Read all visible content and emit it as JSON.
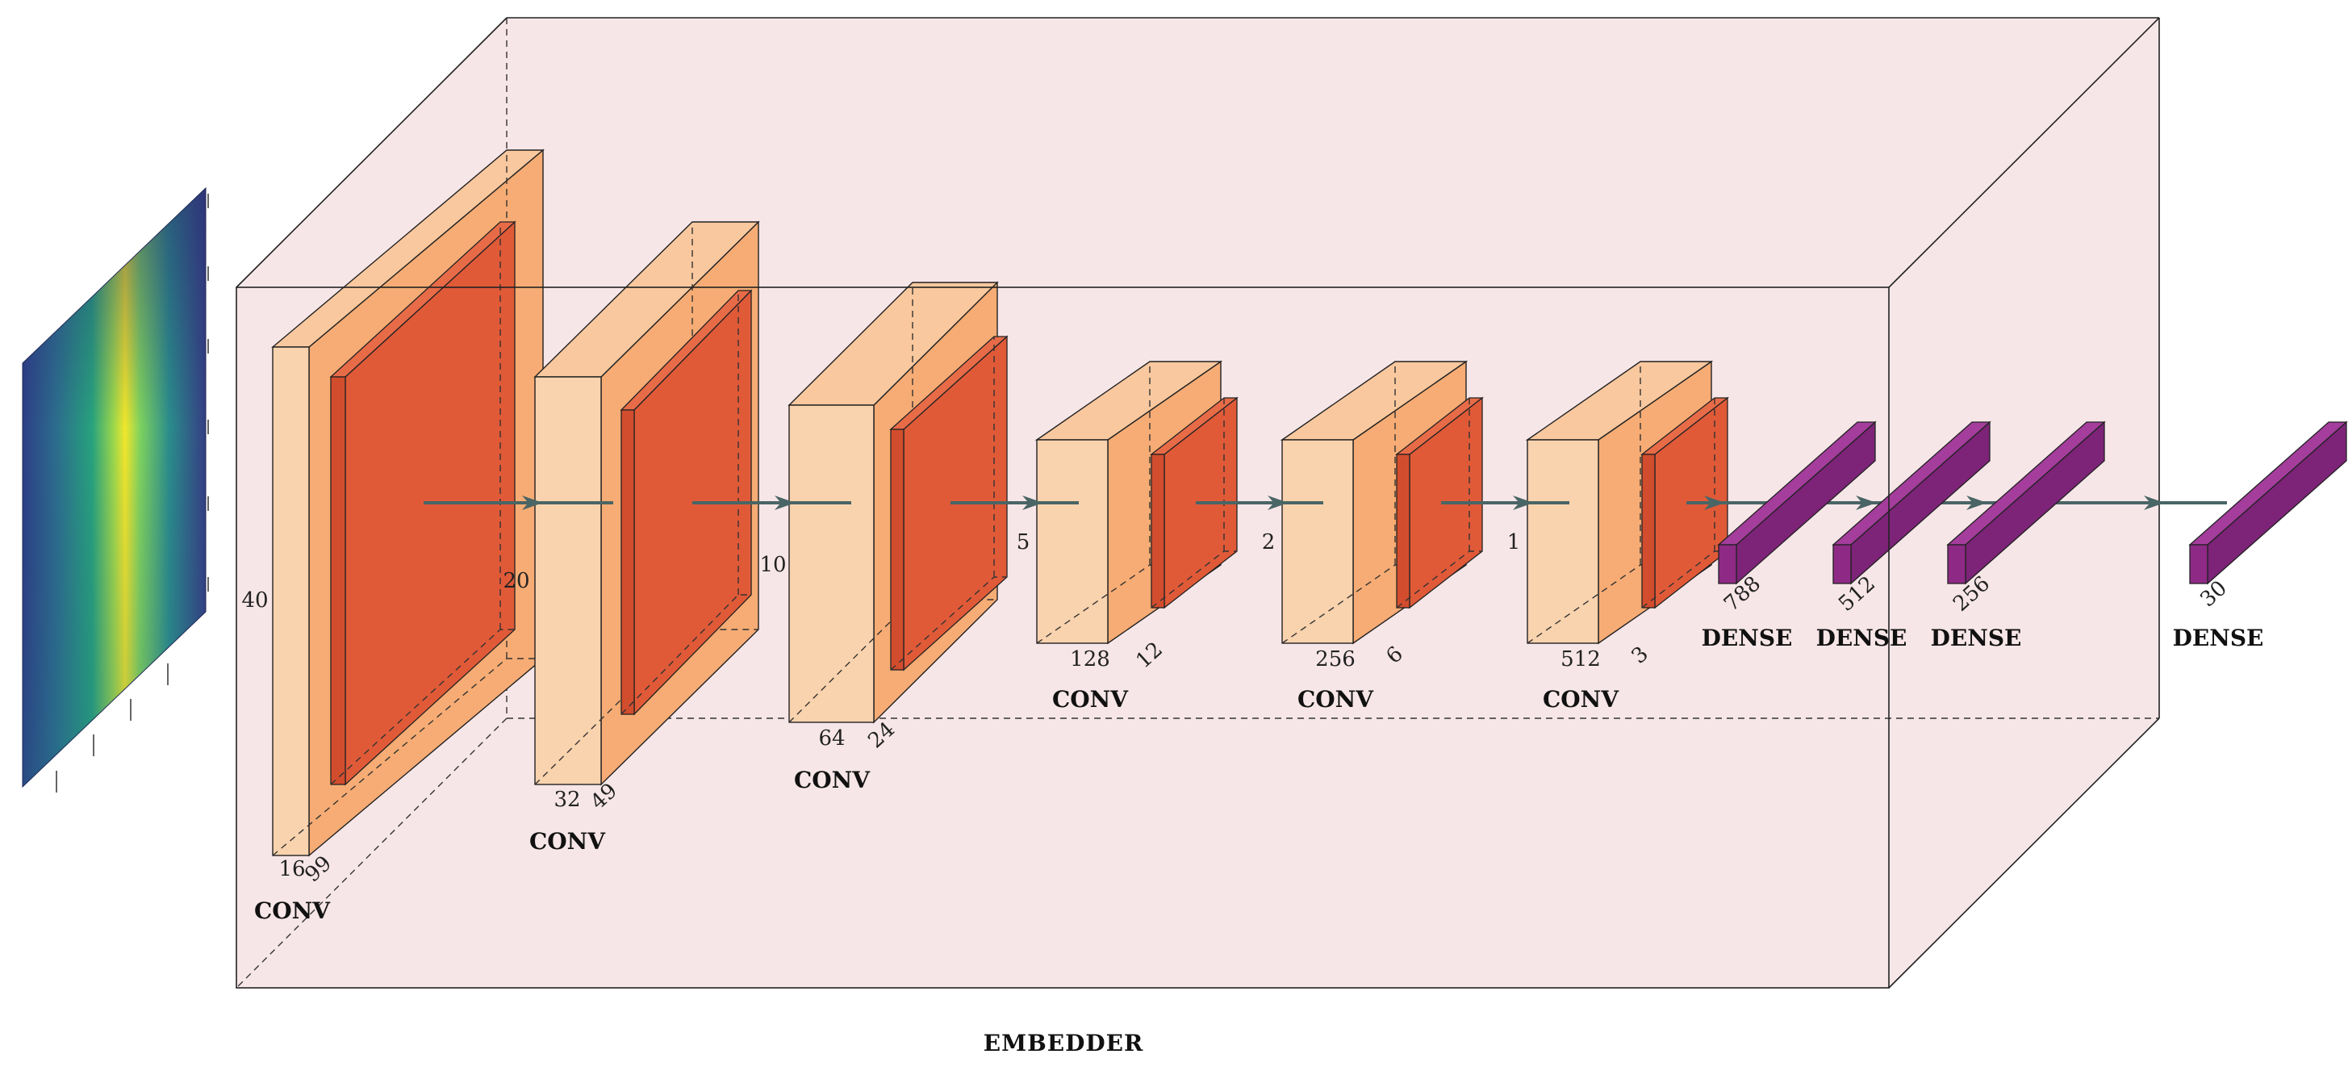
{
  "diagram": {
    "title": "EMBEDDER",
    "colors": {
      "box_fill": "#f7e6e8",
      "conv_light": "#f9d3ae",
      "conv_mid": "#f6ac74",
      "conv_top": "#f9c89e",
      "conv_core": "#e05a38",
      "dense": "#8e2a86",
      "arrow": "#4a6565"
    },
    "conv_layers": [
      {
        "label": "CONV",
        "height": "40",
        "width": "16",
        "depth": "99"
      },
      {
        "label": "CONV",
        "height": "20",
        "width": "32",
        "depth": "49"
      },
      {
        "label": "CONV",
        "height": "10",
        "width": "64",
        "depth": "24"
      },
      {
        "label": "CONV",
        "height": "5",
        "width": "128",
        "depth": "12"
      },
      {
        "label": "CONV",
        "height": "2",
        "width": "256",
        "depth": "6"
      },
      {
        "label": "CONV",
        "height": "1",
        "width": "512",
        "depth": "3"
      }
    ],
    "dense_layers": [
      {
        "label": "DENSE",
        "units": "788"
      },
      {
        "label": "DENSE",
        "units": "512"
      },
      {
        "label": "DENSE",
        "units": "256"
      },
      {
        "label": "DENSE",
        "units": "30"
      }
    ],
    "input": {
      "kind": "spectrogram",
      "colormap": "viridis"
    }
  }
}
